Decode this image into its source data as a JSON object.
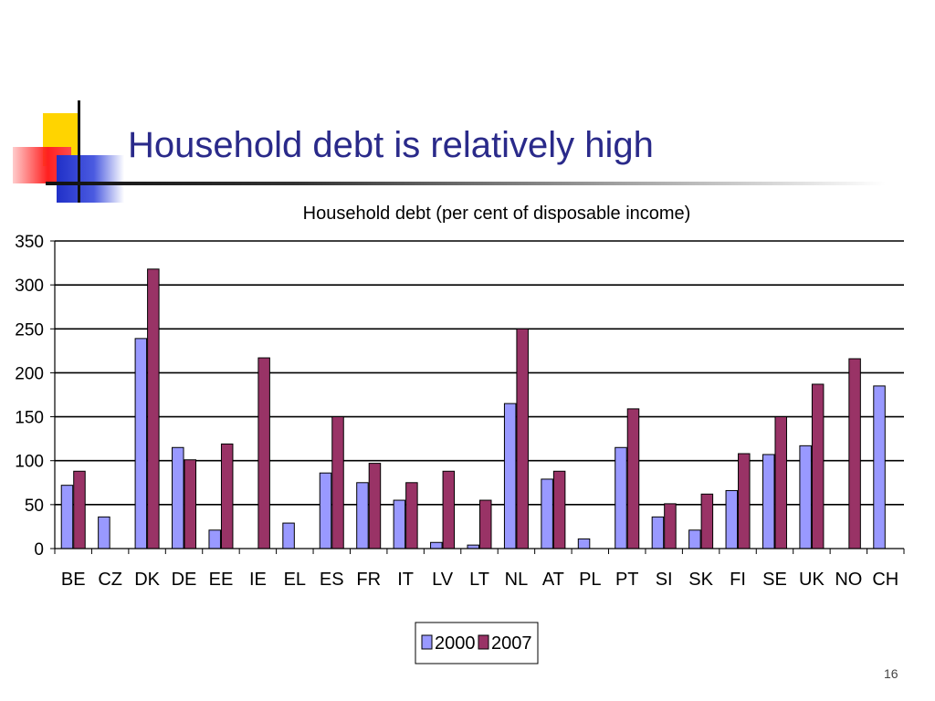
{
  "slide": {
    "title": "Household debt is relatively high",
    "page_number": "16"
  },
  "colors": {
    "title": "#2a2a8a",
    "series_2000": "#9999ff",
    "series_2007": "#993366"
  },
  "chart_data": {
    "type": "bar",
    "title": "Household debt (per cent of disposable income)",
    "xlabel": "",
    "ylabel": "",
    "ylim": [
      0,
      350
    ],
    "yticks": [
      0,
      50,
      100,
      150,
      200,
      250,
      300,
      350
    ],
    "grid": true,
    "legend": "bottom-center",
    "categories": [
      "BE",
      "CZ",
      "DK",
      "DE",
      "EE",
      "IE",
      "EL",
      "ES",
      "FR",
      "IT",
      "LV",
      "LT",
      "NL",
      "AT",
      "PL",
      "PT",
      "SI",
      "SK",
      "FI",
      "SE",
      "UK",
      "NO",
      "CH"
    ],
    "series": [
      {
        "name": "2000",
        "values": [
          72,
          36,
          239,
          115,
          21,
          null,
          29,
          86,
          75,
          55,
          7,
          4,
          165,
          79,
          11,
          115,
          36,
          21,
          66,
          107,
          117,
          null,
          185
        ]
      },
      {
        "name": "2007",
        "values": [
          88,
          null,
          318,
          101,
          119,
          217,
          null,
          150,
          97,
          75,
          88,
          55,
          250,
          88,
          null,
          159,
          51,
          62,
          108,
          150,
          187,
          216,
          null
        ]
      }
    ]
  }
}
